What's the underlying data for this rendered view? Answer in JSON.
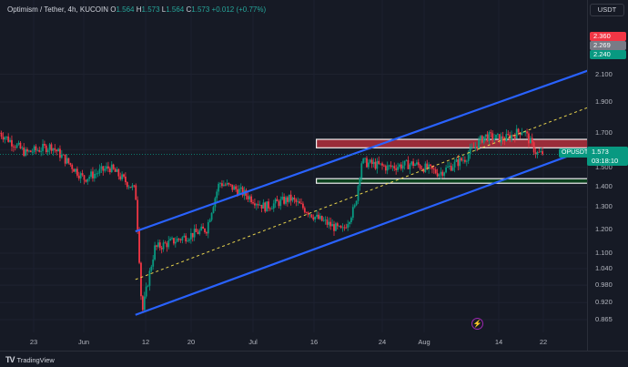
{
  "legend": {
    "symbol": "Optimism / Tether, 4h, KUCOIN",
    "o_label": "O",
    "o": "1.564",
    "h_label": "H",
    "h": "1.573",
    "l_label": "L",
    "l": "1.564",
    "c_label": "C",
    "c": "1.573",
    "change": "+0.012 (+0.77%)"
  },
  "currency": "USDT",
  "price_ticks": [
    "2.100",
    "1.900",
    "1.700",
    "1.600",
    "1.500",
    "1.400",
    "1.300",
    "1.200",
    "1.100",
    "1.040",
    "0.980",
    "0.920",
    "0.865"
  ],
  "price_tags": [
    {
      "label": "2.360",
      "color": "#f23645"
    },
    {
      "label": "2.269",
      "color": "#787b86"
    },
    {
      "label": "2.240",
      "color": "#089981"
    }
  ],
  "symbol_label": "OPUSDT",
  "last_price": "1.573",
  "countdown": "03:18:10",
  "time_ticks": [
    "23",
    "Jun",
    "12",
    "20",
    "Jul",
    "16",
    "24",
    "Aug",
    "14",
    "22"
  ],
  "branding": {
    "name": "TradingView",
    "mark": "TV"
  },
  "icons": {
    "flash": "lightning-icon",
    "logo": "tradingview-logo-icon"
  },
  "colors": {
    "up": "#089981",
    "down": "#f23645",
    "channel": "#2962ff",
    "midline": "#e8d44d",
    "resistance_fill": "#b2303d",
    "support_fill": "#0d4a1e"
  },
  "chart_data": {
    "type": "candlestick",
    "symbol": "OPUSDT",
    "interval": "4h",
    "exchange": "KUCOIN",
    "y_scale": "log",
    "ylim": [
      0.84,
      2.4
    ],
    "x": [
      "May 19",
      "Aug 24"
    ],
    "x_ticks": [
      "23",
      "Jun",
      "12",
      "20",
      "Jul",
      "16",
      "24",
      "Aug",
      "14",
      "22"
    ],
    "ohlc_last": {
      "open": 1.564,
      "high": 1.573,
      "low": 1.564,
      "close": 1.573
    },
    "price_path": [
      {
        "date": "May 19",
        "price": 1.7
      },
      {
        "date": "May 23",
        "price": 1.58
      },
      {
        "date": "May 27",
        "price": 1.62
      },
      {
        "date": "Jun 1",
        "price": 1.44
      },
      {
        "date": "Jun 5",
        "price": 1.5
      },
      {
        "date": "Jun 9",
        "price": 1.38
      },
      {
        "date": "Jun 10",
        "price": 0.88
      },
      {
        "date": "Jun 12",
        "price": 1.12
      },
      {
        "date": "Jun 16",
        "price": 1.16
      },
      {
        "date": "Jun 20",
        "price": 1.2
      },
      {
        "date": "Jun 22",
        "price": 1.42
      },
      {
        "date": "Jun 25",
        "price": 1.38
      },
      {
        "date": "Jun 29",
        "price": 1.3
      },
      {
        "date": "Jul 3",
        "price": 1.34
      },
      {
        "date": "Jul 7",
        "price": 1.25
      },
      {
        "date": "Jul 11",
        "price": 1.19
      },
      {
        "date": "Jul 13",
        "price": 1.3
      },
      {
        "date": "Jul 14",
        "price": 1.53
      },
      {
        "date": "Jul 18",
        "price": 1.5
      },
      {
        "date": "Jul 22",
        "price": 1.52
      },
      {
        "date": "Jul 26",
        "price": 1.47
      },
      {
        "date": "Jul 30",
        "price": 1.55
      },
      {
        "date": "Aug 2",
        "price": 1.68
      },
      {
        "date": "Aug 5",
        "price": 1.66
      },
      {
        "date": "Aug 8",
        "price": 1.72
      },
      {
        "date": "Aug 10",
        "price": 1.58
      },
      {
        "date": "Aug 11",
        "price": 1.573
      }
    ],
    "channel": {
      "upper": [
        {
          "date": "Jun 9",
          "price": 1.19
        },
        {
          "date": "Aug 22",
          "price": 2.2
        }
      ],
      "mid": [
        {
          "date": "Jun 9",
          "price": 1.0
        },
        {
          "date": "Aug 22",
          "price": 1.93
        }
      ],
      "lower": [
        {
          "date": "Jun 9",
          "price": 0.88
        },
        {
          "date": "Aug 22",
          "price": 1.66
        }
      ]
    },
    "zones": [
      {
        "name": "",
        "top": 1.66,
        "bottom": 1.61,
        "from": "Jul 7",
        "to": "Aug 21"
      },
      {
        "name": "",
        "top": 1.44,
        "bottom": 1.42,
        "from": "Jul 7",
        "to": "Aug 21"
      }
    ],
    "last_price_line": 1.573
  }
}
